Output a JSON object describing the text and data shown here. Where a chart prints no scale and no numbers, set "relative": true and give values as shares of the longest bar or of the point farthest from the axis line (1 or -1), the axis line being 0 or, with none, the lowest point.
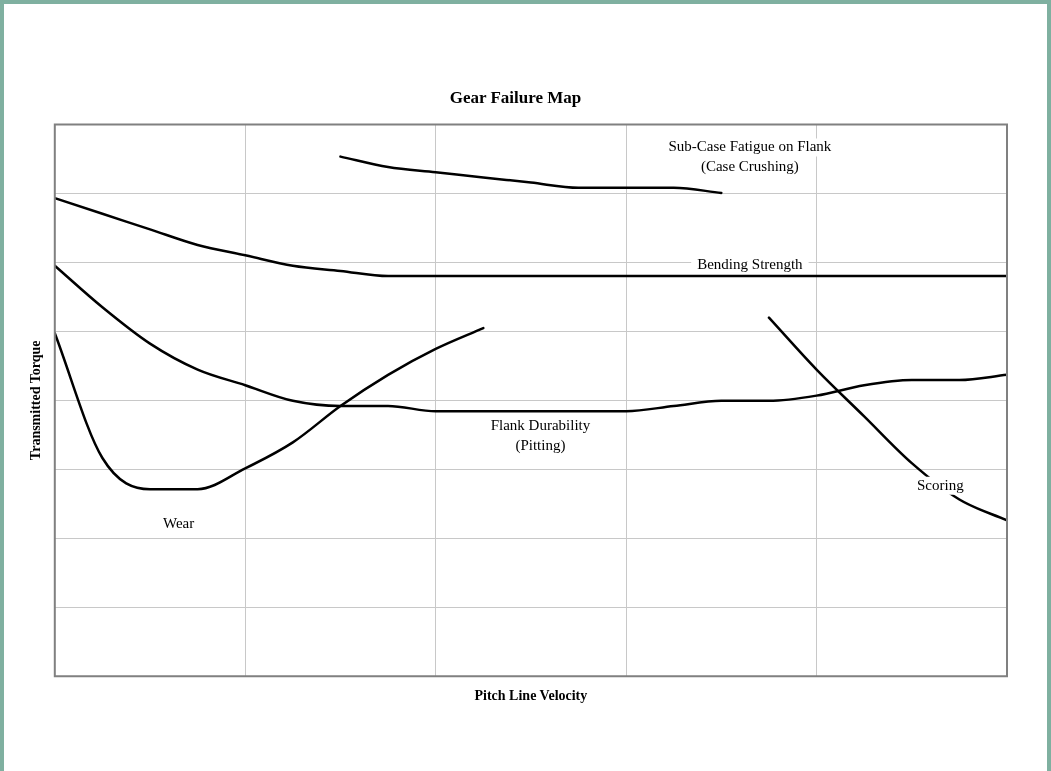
{
  "chart_data": {
    "type": "line",
    "title": "Gear Failure Map",
    "xlabel": "Pitch Line Velocity",
    "ylabel": "Transmitted Torque",
    "relative": true,
    "grid": true,
    "legend": false,
    "marker": "none",
    "line_style": "solid",
    "categories": [
      null,
      null,
      null,
      null,
      null,
      null,
      null,
      null,
      null,
      null,
      null,
      null,
      null,
      null,
      null,
      null,
      null,
      null,
      null,
      null,
      null
    ],
    "series": [
      {
        "name": "Sub-Case Fatigue on Flank\n(Case Crushing)",
        "color": "#000000",
        "values": [
          null,
          null,
          null,
          null,
          null,
          null,
          1.0,
          0.98,
          0.97,
          0.96,
          0.95,
          0.94,
          0.94,
          0.94,
          0.93,
          null,
          null,
          null,
          null,
          null,
          null
        ]
      },
      {
        "name": "Bending Strength",
        "color": "#000000",
        "values": [
          0.92,
          0.89,
          0.86,
          0.83,
          0.81,
          0.79,
          0.78,
          0.77,
          0.77,
          0.77,
          0.77,
          0.77,
          0.77,
          0.77,
          0.77,
          0.77,
          0.77,
          0.77,
          0.77,
          0.77,
          0.77
        ]
      },
      {
        "name": "Flank Durability\n(Pitting)",
        "color": "#000000",
        "values": [
          0.79,
          0.71,
          0.64,
          0.59,
          0.56,
          0.53,
          0.52,
          0.52,
          0.51,
          0.51,
          0.51,
          0.51,
          0.51,
          0.52,
          0.53,
          0.53,
          0.54,
          0.56,
          0.57,
          0.57,
          0.58
        ]
      },
      {
        "name": "Scoring",
        "color": "#000000",
        "values": [
          null,
          null,
          null,
          null,
          null,
          null,
          null,
          null,
          null,
          null,
          null,
          null,
          null,
          null,
          null,
          0.69,
          0.59,
          0.5,
          0.41,
          0.34,
          0.3
        ]
      },
      {
        "name": "Wear",
        "color": "#000000",
        "values": [
          0.66,
          0.42,
          0.36,
          0.36,
          0.4,
          0.45,
          0.52,
          0.58,
          0.63,
          0.67,
          null,
          null,
          null,
          null,
          null,
          null,
          null,
          null,
          null,
          null,
          null
        ]
      }
    ]
  }
}
